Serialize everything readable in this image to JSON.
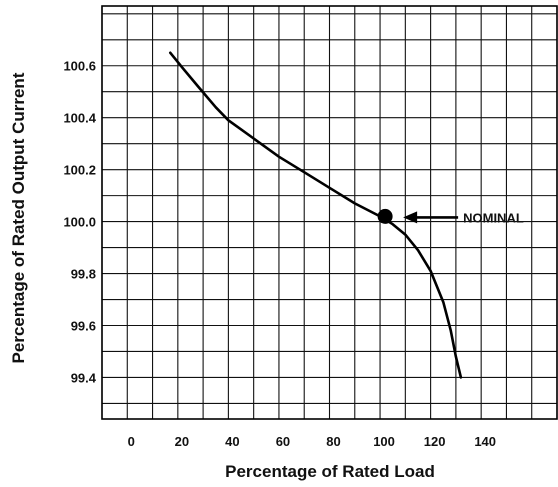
{
  "chart_data": {
    "type": "line",
    "title": "",
    "xlabel": "Percentage of Rated Load",
    "ylabel": "Percentage of Rated Output Current",
    "xlim": [
      -10,
      170
    ],
    "ylim": [
      99.24,
      100.83
    ],
    "x_ticks": [
      0,
      20,
      40,
      60,
      80,
      100,
      120,
      140
    ],
    "x_tick_labels": [
      "0",
      "20",
      "40",
      "60",
      "80",
      "100",
      "120",
      "140"
    ],
    "y_ticks": [
      99.4,
      99.6,
      99.8,
      100.0,
      100.2,
      100.4,
      100.6
    ],
    "y_tick_labels": [
      "99.4",
      "99.6",
      "99.8",
      "100.0",
      "100.2",
      "100.4",
      "100.6"
    ],
    "grid": true,
    "legend": "none",
    "series": [
      {
        "x": [
          17,
          22,
          28,
          35,
          40,
          50,
          60,
          70,
          80,
          90,
          100,
          105,
          110,
          115,
          120,
          125,
          128,
          130,
          132
        ],
        "y": [
          100.65,
          100.59,
          100.52,
          100.44,
          100.39,
          100.32,
          100.25,
          100.19,
          100.13,
          100.07,
          100.02,
          99.99,
          99.95,
          99.89,
          99.81,
          99.69,
          99.58,
          99.48,
          99.4
        ]
      }
    ],
    "annotations": [
      {
        "label": "NOMINAL",
        "x": 102,
        "y": 100.02,
        "marker": "dot"
      }
    ]
  }
}
